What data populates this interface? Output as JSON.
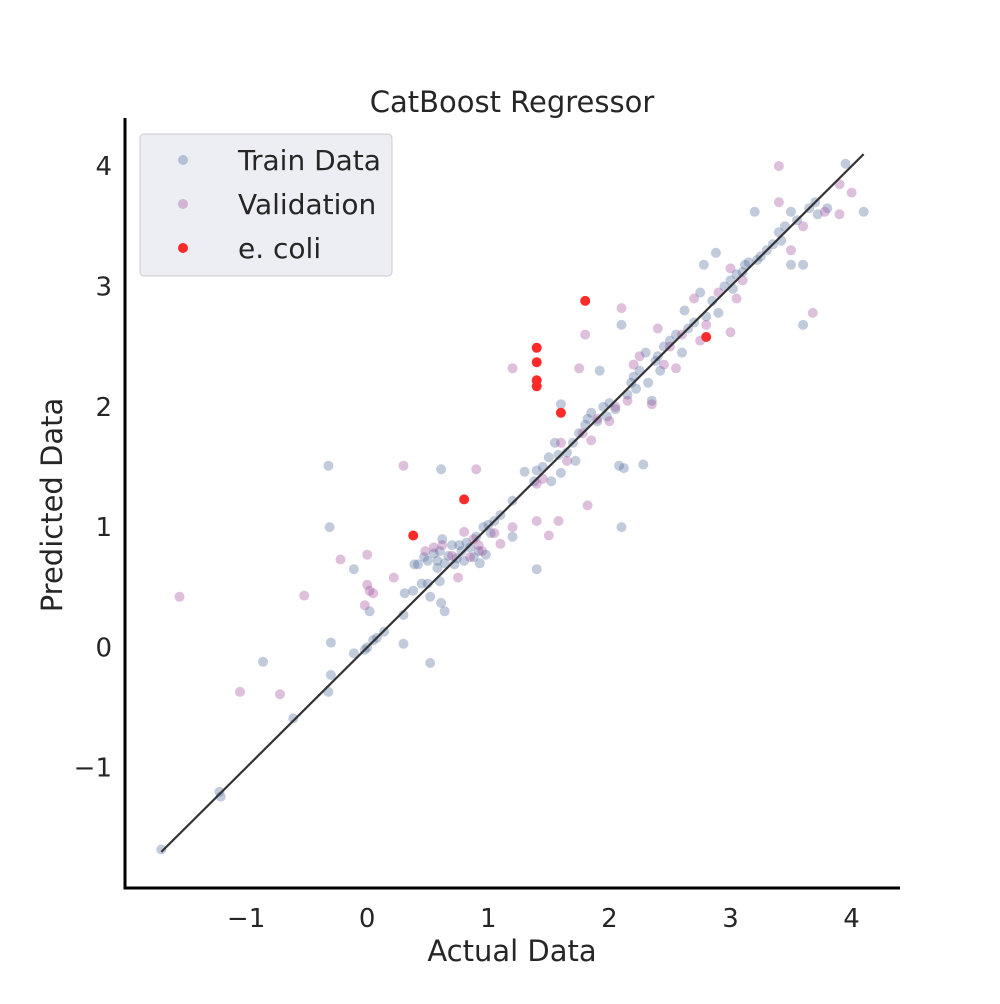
{
  "chart_data": {
    "type": "scatter",
    "title": "CatBoost Regressor",
    "xlabel": "Actual Data",
    "ylabel": "Predicted Data",
    "xlim": [
      -2.0,
      4.4
    ],
    "ylim": [
      -2.0,
      4.4
    ],
    "xticks": [
      -1,
      0,
      1,
      2,
      3,
      4
    ],
    "yticks": [
      -1,
      0,
      1,
      2,
      3,
      4
    ],
    "xtick_labels": [
      "−1",
      "0",
      "1",
      "2",
      "3",
      "4"
    ],
    "ytick_labels": [
      "−1",
      "0",
      "1",
      "2",
      "3",
      "4"
    ],
    "grid": false,
    "legend_position": "top-left",
    "reference_line": {
      "from": [
        -1.7,
        -1.7
      ],
      "to": [
        4.1,
        4.1
      ],
      "color": "#333333"
    },
    "series": [
      {
        "name": "Train Data",
        "color": "#4c6a9c",
        "alpha": 0.35,
        "points": [
          [
            -1.7,
            -1.68
          ],
          [
            -1.22,
            -1.2
          ],
          [
            -1.21,
            -1.24
          ],
          [
            -0.86,
            -0.12
          ],
          [
            -0.61,
            -0.59
          ],
          [
            -0.32,
            1.51
          ],
          [
            -0.31,
            1.0
          ],
          [
            -0.32,
            -0.37
          ],
          [
            -0.3,
            -0.23
          ],
          [
            -0.3,
            0.04
          ],
          [
            -0.11,
            -0.05
          ],
          [
            -0.11,
            0.65
          ],
          [
            -0.02,
            -0.02
          ],
          [
            0.0,
            0.0
          ],
          [
            0.02,
            0.3
          ],
          [
            0.05,
            0.06
          ],
          [
            0.08,
            0.08
          ],
          [
            0.14,
            0.13
          ],
          [
            0.3,
            0.03
          ],
          [
            0.3,
            0.27
          ],
          [
            0.31,
            0.45
          ],
          [
            0.38,
            0.47
          ],
          [
            0.39,
            0.69
          ],
          [
            0.42,
            0.69
          ],
          [
            0.45,
            0.53
          ],
          [
            0.47,
            0.75
          ],
          [
            0.5,
            0.53
          ],
          [
            0.5,
            0.72
          ],
          [
            0.52,
            -0.13
          ],
          [
            0.52,
            0.42
          ],
          [
            0.55,
            0.78
          ],
          [
            0.58,
            0.66
          ],
          [
            0.58,
            0.72
          ],
          [
            0.6,
            0.8
          ],
          [
            0.6,
            0.55
          ],
          [
            0.61,
            0.37
          ],
          [
            0.61,
            1.48
          ],
          [
            0.62,
            0.9
          ],
          [
            0.64,
            0.3
          ],
          [
            0.64,
            0.7
          ],
          [
            0.67,
            0.76
          ],
          [
            0.7,
            0.85
          ],
          [
            0.72,
            0.69
          ],
          [
            0.74,
            0.74
          ],
          [
            0.76,
            0.85
          ],
          [
            0.78,
            0.8
          ],
          [
            0.8,
            0.72
          ],
          [
            0.82,
            0.87
          ],
          [
            0.85,
            0.83
          ],
          [
            0.88,
            0.75
          ],
          [
            0.9,
            0.92
          ],
          [
            0.92,
            0.8
          ],
          [
            0.93,
            0.7
          ],
          [
            0.96,
            1.0
          ],
          [
            0.98,
            0.77
          ],
          [
            1.0,
            1.02
          ],
          [
            1.02,
            0.95
          ],
          [
            1.05,
            1.05
          ],
          [
            1.1,
            1.1
          ],
          [
            1.2,
            1.22
          ],
          [
            1.2,
            0.92
          ],
          [
            1.3,
            1.46
          ],
          [
            1.38,
            1.38
          ],
          [
            1.4,
            0.65
          ],
          [
            1.4,
            1.47
          ],
          [
            1.45,
            1.5
          ],
          [
            1.5,
            1.58
          ],
          [
            1.52,
            1.38
          ],
          [
            1.55,
            1.7
          ],
          [
            1.58,
            1.6
          ],
          [
            1.6,
            2.02
          ],
          [
            1.6,
            1.45
          ],
          [
            1.65,
            1.62
          ],
          [
            1.7,
            1.7
          ],
          [
            1.72,
            1.55
          ],
          [
            1.75,
            1.78
          ],
          [
            1.8,
            1.85
          ],
          [
            1.82,
            1.9
          ],
          [
            1.85,
            1.95
          ],
          [
            1.9,
            1.88
          ],
          [
            1.92,
            2.3
          ],
          [
            1.95,
            2.0
          ],
          [
            1.98,
            1.92
          ],
          [
            2.0,
            2.03
          ],
          [
            2.05,
            1.98
          ],
          [
            2.08,
            1.51
          ],
          [
            2.1,
            1.0
          ],
          [
            2.1,
            2.68
          ],
          [
            2.12,
            1.49
          ],
          [
            2.15,
            2.1
          ],
          [
            2.18,
            2.2
          ],
          [
            2.2,
            2.25
          ],
          [
            2.22,
            2.15
          ],
          [
            2.25,
            2.3
          ],
          [
            2.28,
            1.52
          ],
          [
            2.3,
            2.45
          ],
          [
            2.32,
            2.2
          ],
          [
            2.35,
            2.05
          ],
          [
            2.38,
            2.38
          ],
          [
            2.4,
            2.42
          ],
          [
            2.42,
            2.3
          ],
          [
            2.45,
            2.5
          ],
          [
            2.5,
            2.55
          ],
          [
            2.55,
            2.6
          ],
          [
            2.6,
            2.45
          ],
          [
            2.62,
            2.8
          ],
          [
            2.65,
            2.65
          ],
          [
            2.7,
            2.7
          ],
          [
            2.75,
            2.95
          ],
          [
            2.78,
            3.18
          ],
          [
            2.8,
            2.75
          ],
          [
            2.85,
            2.88
          ],
          [
            2.88,
            3.28
          ],
          [
            2.9,
            2.78
          ],
          [
            2.95,
            3.0
          ],
          [
            3.0,
            3.05
          ],
          [
            3.02,
            2.98
          ],
          [
            3.05,
            3.1
          ],
          [
            3.1,
            3.12
          ],
          [
            3.12,
            3.18
          ],
          [
            3.15,
            3.2
          ],
          [
            3.2,
            3.62
          ],
          [
            3.22,
            3.22
          ],
          [
            3.25,
            3.25
          ],
          [
            3.3,
            3.3
          ],
          [
            3.35,
            3.35
          ],
          [
            3.4,
            3.45
          ],
          [
            3.42,
            3.38
          ],
          [
            3.45,
            3.5
          ],
          [
            3.5,
            3.18
          ],
          [
            3.5,
            3.62
          ],
          [
            3.55,
            3.55
          ],
          [
            3.6,
            2.68
          ],
          [
            3.6,
            3.18
          ],
          [
            3.65,
            3.65
          ],
          [
            3.7,
            3.7
          ],
          [
            3.72,
            3.6
          ],
          [
            3.8,
            3.65
          ],
          [
            3.95,
            4.02
          ],
          [
            4.1,
            3.62
          ]
        ]
      },
      {
        "name": "Validation",
        "color": "#a04b9a",
        "alpha": 0.35,
        "points": [
          [
            -1.55,
            0.42
          ],
          [
            -1.05,
            -0.37
          ],
          [
            -0.72,
            -0.39
          ],
          [
            -0.52,
            0.43
          ],
          [
            -0.22,
            0.73
          ],
          [
            -0.02,
            0.35
          ],
          [
            0.0,
            0.52
          ],
          [
            0.0,
            0.77
          ],
          [
            0.02,
            0.47
          ],
          [
            0.05,
            0.45
          ],
          [
            0.22,
            0.58
          ],
          [
            0.3,
            1.51
          ],
          [
            0.48,
            0.8
          ],
          [
            0.55,
            0.83
          ],
          [
            0.62,
            0.85
          ],
          [
            0.7,
            0.76
          ],
          [
            0.75,
            0.58
          ],
          [
            0.8,
            0.96
          ],
          [
            0.85,
            0.75
          ],
          [
            0.88,
            0.9
          ],
          [
            0.9,
            1.48
          ],
          [
            0.92,
            0.85
          ],
          [
            0.95,
            0.8
          ],
          [
            1.05,
            0.95
          ],
          [
            1.1,
            0.86
          ],
          [
            1.2,
            1.0
          ],
          [
            1.2,
            2.32
          ],
          [
            1.4,
            1.05
          ],
          [
            1.4,
            1.36
          ],
          [
            1.45,
            1.4
          ],
          [
            1.5,
            0.93
          ],
          [
            1.58,
            1.05
          ],
          [
            1.6,
            1.7
          ],
          [
            1.65,
            1.55
          ],
          [
            1.75,
            2.32
          ],
          [
            1.78,
            1.78
          ],
          [
            1.8,
            2.6
          ],
          [
            1.82,
            1.18
          ],
          [
            1.85,
            1.72
          ],
          [
            1.9,
            1.9
          ],
          [
            2.0,
            1.88
          ],
          [
            2.05,
            2.0
          ],
          [
            2.1,
            2.82
          ],
          [
            2.15,
            2.05
          ],
          [
            2.2,
            2.35
          ],
          [
            2.25,
            2.42
          ],
          [
            2.35,
            2.02
          ],
          [
            2.4,
            2.65
          ],
          [
            2.45,
            2.35
          ],
          [
            2.5,
            2.5
          ],
          [
            2.55,
            2.32
          ],
          [
            2.6,
            2.6
          ],
          [
            2.7,
            2.9
          ],
          [
            2.75,
            2.55
          ],
          [
            2.8,
            2.68
          ],
          [
            2.9,
            2.95
          ],
          [
            3.0,
            2.62
          ],
          [
            3.0,
            3.15
          ],
          [
            3.05,
            2.9
          ],
          [
            3.1,
            3.05
          ],
          [
            3.4,
            4.0
          ],
          [
            3.4,
            3.7
          ],
          [
            3.6,
            3.5
          ],
          [
            3.68,
            2.78
          ],
          [
            3.78,
            3.62
          ],
          [
            3.9,
            3.6
          ],
          [
            3.9,
            3.85
          ],
          [
            4.0,
            3.78
          ],
          [
            3.5,
            3.3
          ]
        ]
      },
      {
        "name": "e. coli",
        "color": "#ff2b2b",
        "alpha": 1.0,
        "points": [
          [
            0.38,
            0.93
          ],
          [
            0.8,
            1.23
          ],
          [
            1.4,
            2.49
          ],
          [
            1.4,
            2.37
          ],
          [
            1.4,
            2.22
          ],
          [
            1.4,
            2.17
          ],
          [
            1.6,
            1.95
          ],
          [
            1.8,
            2.88
          ],
          [
            2.8,
            2.58
          ]
        ]
      }
    ]
  }
}
